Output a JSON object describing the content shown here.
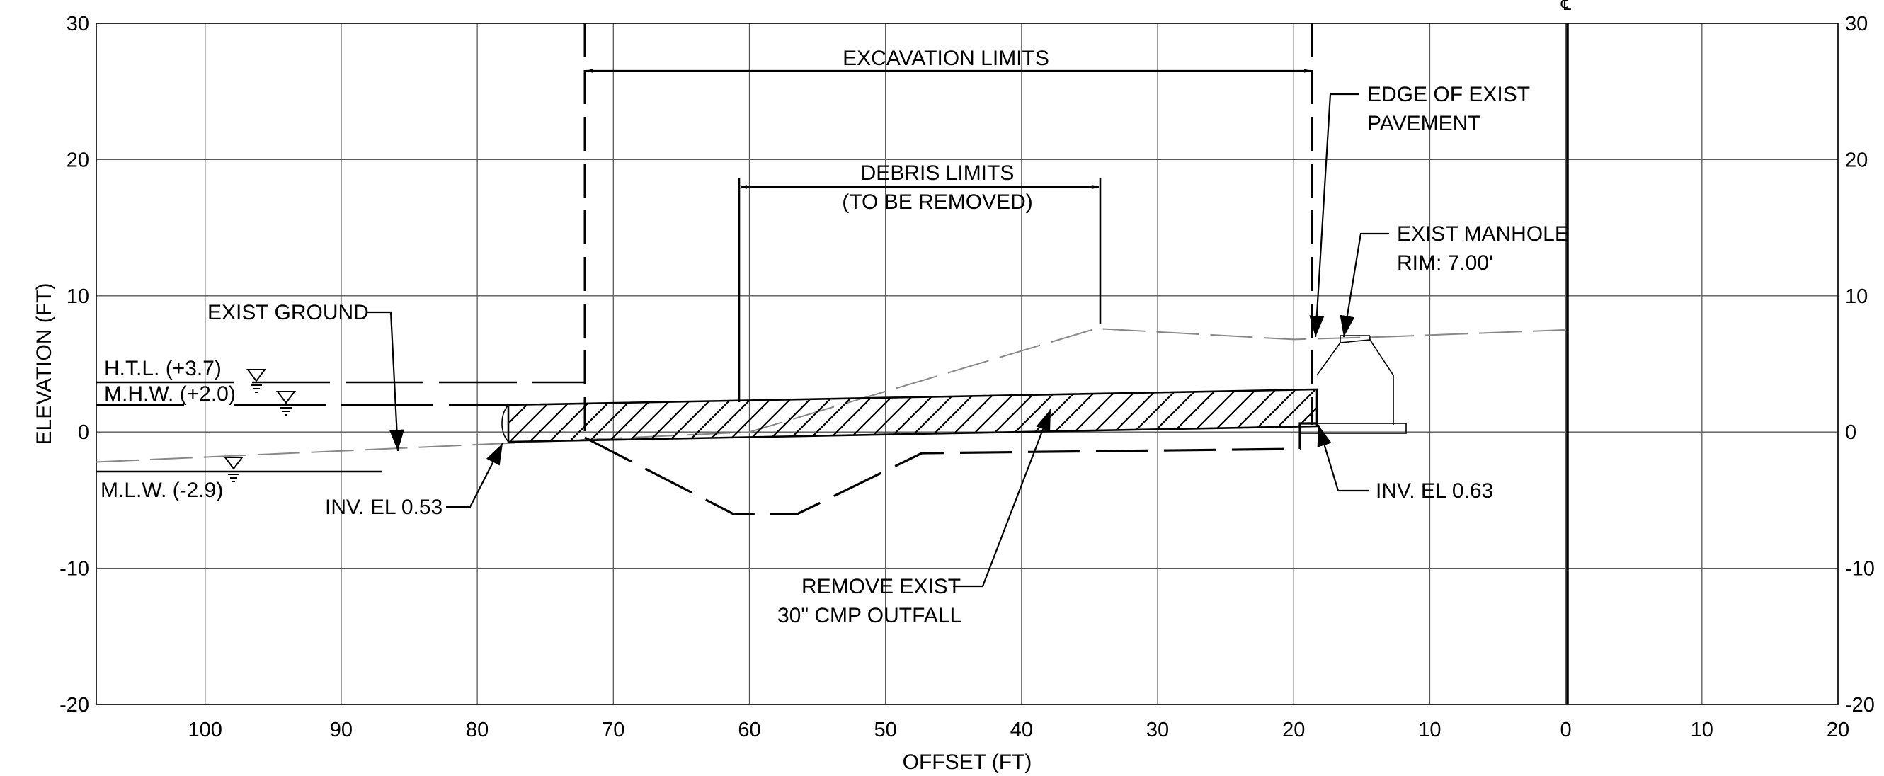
{
  "axes": {
    "x_title": "OFFSET (FT)",
    "y_title": "ELEVATION (FT)",
    "x_ticks": [
      "100",
      "90",
      "80",
      "70",
      "60",
      "50",
      "40",
      "30",
      "20",
      "10",
      "0",
      "10",
      "20"
    ],
    "y_ticks": [
      "30",
      "20",
      "10",
      "0",
      "-10",
      "-20"
    ],
    "x_range": [
      108,
      -20
    ],
    "y_range": [
      -20,
      30
    ],
    "centerline_symbol": "℄"
  },
  "labels": {
    "excavation_limits": "EXCAVATION LIMITS",
    "debris_limits_line1": "DEBRIS LIMITS",
    "debris_limits_line2": "(TO BE REMOVED)",
    "edge_pavement_line1": "EDGE OF EXIST",
    "edge_pavement_line2": "PAVEMENT",
    "manhole_line1": "EXIST MANHOLE",
    "manhole_line2": "RIM: 7.00'",
    "exist_ground": "EXIST GROUND",
    "htl": "H.T.L. (+3.7)",
    "mhw": "M.H.W. (+2.0)",
    "mlw": "M.L.W. (-2.9)",
    "inv_left": "INV. EL 0.53",
    "inv_right": "INV. EL 0.63",
    "remove_line1": "REMOVE EXIST",
    "remove_line2": "30\" CMP OUTFALL"
  },
  "profile": {
    "excavation_limits_offsets": [
      72.2,
      18.6
    ],
    "debris_limits_offsets": [
      61.2,
      34.6
    ],
    "water_levels": {
      "htl": 3.7,
      "mhw": 2.0,
      "mlw": -2.9
    },
    "pipe": {
      "size": "30\"",
      "material": "CMP",
      "left_end": {
        "offset": 78.5,
        "invert": 0.53
      },
      "right_end": {
        "offset": 18.6,
        "invert": 0.63
      },
      "crown_left": 2.0,
      "crown_right": 3.2
    },
    "manhole_rim_elevation": 7.0,
    "exist_ground": [
      [
        108,
        -2.2
      ],
      [
        86,
        -1.2
      ],
      [
        60,
        0.0
      ],
      [
        34.5,
        7.6
      ],
      [
        20,
        6.8
      ],
      [
        13,
        7.0
      ],
      [
        0,
        7.5
      ]
    ],
    "excavation_bottom": [
      [
        72.2,
        -0.3
      ],
      [
        61,
        -5.9
      ],
      [
        56.5,
        -5.9
      ],
      [
        47.5,
        -1.4
      ],
      [
        20,
        -1.1
      ],
      [
        20,
        0.6
      ],
      [
        18.6,
        0.6
      ]
    ]
  },
  "colors": {
    "line": "#000000",
    "grid": "#555555",
    "ground": "#888888"
  }
}
